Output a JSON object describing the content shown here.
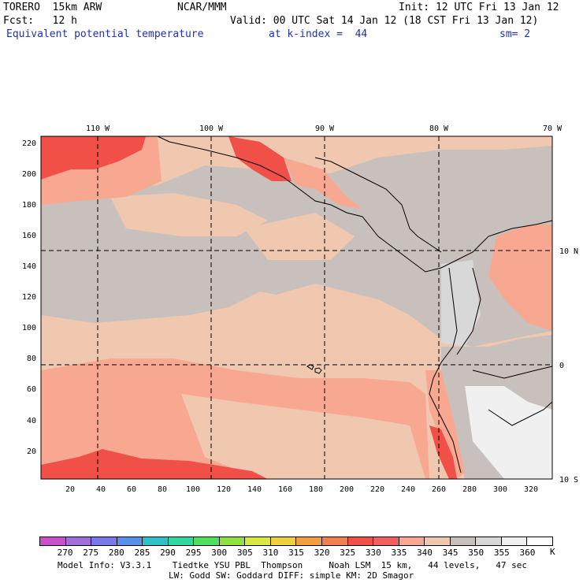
{
  "header": {
    "model": "TORERO  15km ARW",
    "center": "NCAR/MMM",
    "init": "Init: 12 UTC Fri 13 Jan 12",
    "fcst": "Fcst:   12 h",
    "valid": "Valid: 00 UTC Sat 14 Jan 12 (18 CST Fri 13 Jan 12)",
    "field": "Equivalent potential temperature",
    "level": "at k-index =  44",
    "smooth": "sm= 2"
  },
  "map": {
    "lon_labels": [
      "110 W",
      "100 W",
      "90 W",
      "80 W",
      "70 W"
    ],
    "lat_labels": [
      "10 N",
      "0",
      "10 S"
    ],
    "y_ticks": [
      "20",
      "40",
      "60",
      "80",
      "100",
      "120",
      "140",
      "160",
      "180",
      "200",
      "220"
    ],
    "x_ticks": [
      "20",
      "40",
      "60",
      "80",
      "100",
      "120",
      "140",
      "160",
      "180",
      "200",
      "220",
      "240",
      "260",
      "280",
      "300",
      "320"
    ]
  },
  "colorbar": {
    "unit": "K",
    "labels": [
      "270",
      "275",
      "280",
      "285",
      "290",
      "295",
      "300",
      "305",
      "310",
      "315",
      "320",
      "325",
      "330",
      "335",
      "340",
      "345",
      "350",
      "355",
      "360"
    ],
    "colors": [
      "#c850c8",
      "#a070d8",
      "#7a78e8",
      "#5a90e8",
      "#30c0c8",
      "#30d8a0",
      "#50e060",
      "#90e040",
      "#d8e840",
      "#f0d040",
      "#f0a040",
      "#f08050",
      "#f05048",
      "#f06060",
      "#f8a890",
      "#f0c8b0",
      "#c8c0bc",
      "#d8d8d8",
      "#f0f0f0",
      "#ffffff"
    ]
  },
  "footer": {
    "line1": "Model Info: V3.3.1    Tiedtke YSU PBL  Thompson     Noah LSM  15 km,   44 levels,   47 sec",
    "line2": "LW: Godd SW: Goddard DIFF: simple KM: 2D Smagor"
  }
}
